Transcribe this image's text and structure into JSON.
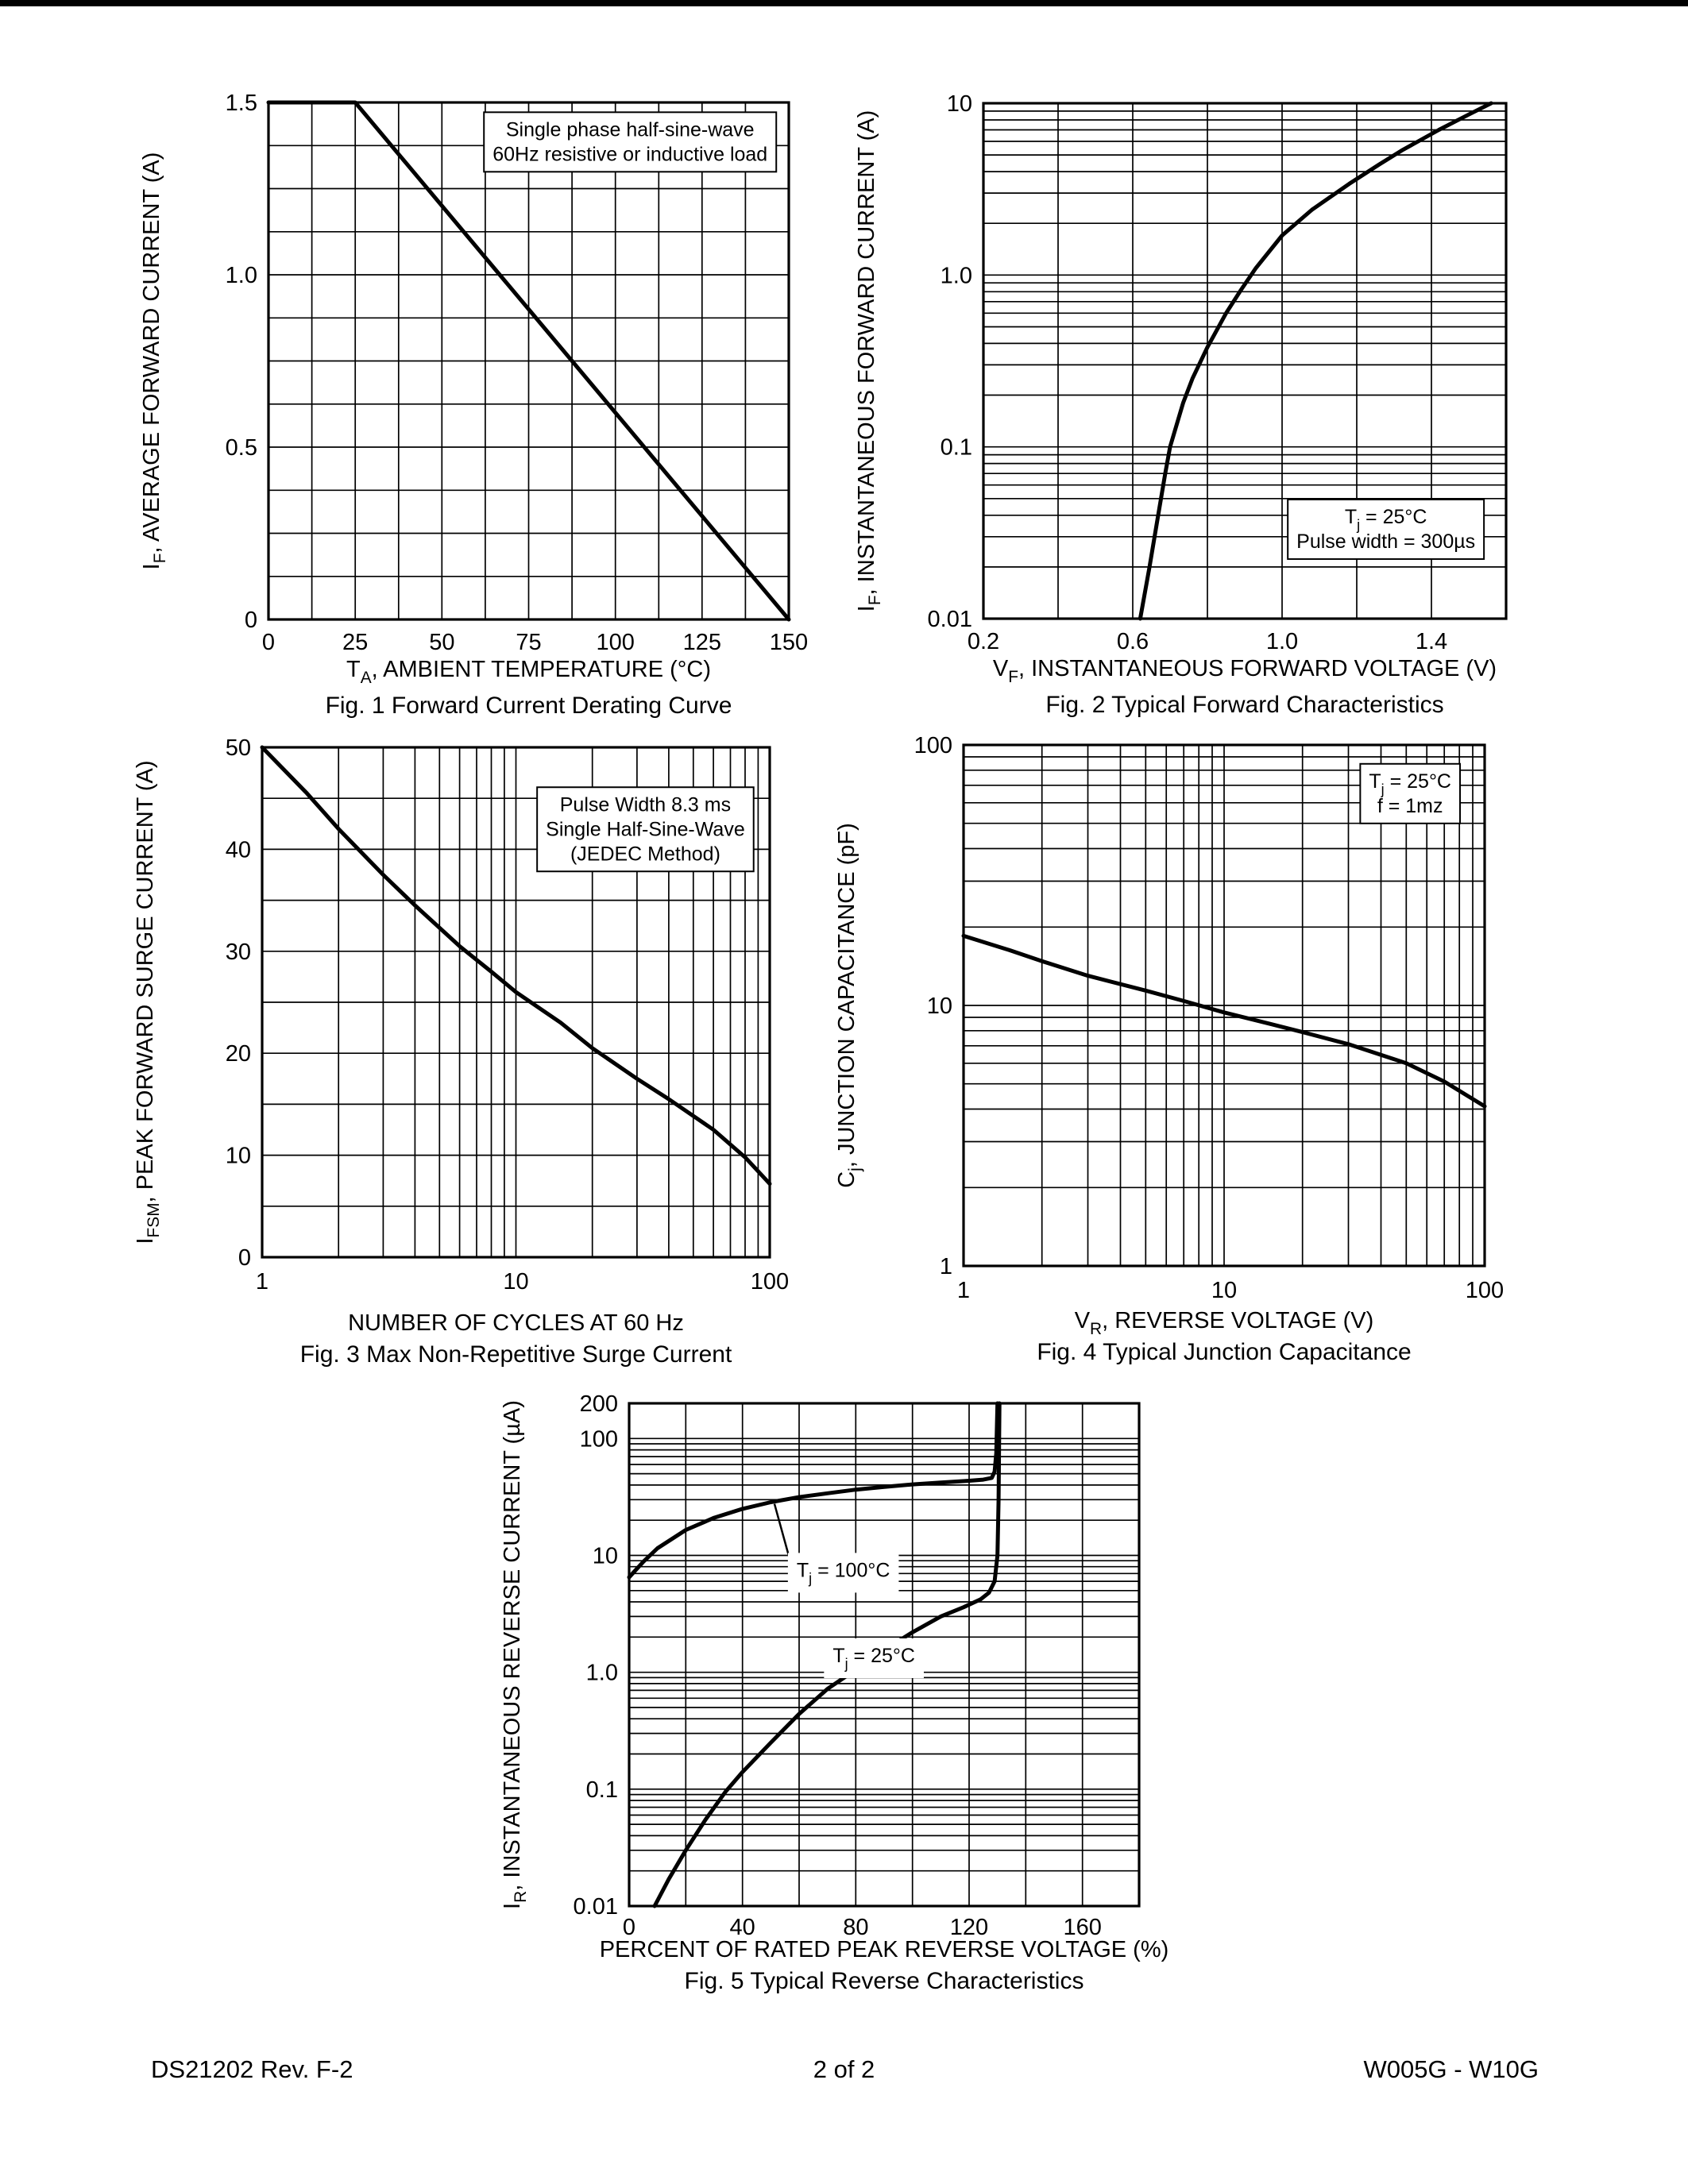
{
  "footer": {
    "left": "DS21202 Rev. F-2",
    "center": "2 of 2",
    "right": "W005G - W10G"
  },
  "chart_data": [
    {
      "id": "fig1",
      "type": "line",
      "title": "Fig. 1  Forward Current Derating Curve",
      "xlabel": "T_{A}, AMBIENT TEMPERATURE (°C)",
      "ylabel": "I_{F}, AVERAGE FORWARD CURRENT (A)",
      "xscale": "linear",
      "yscale": "linear",
      "xlim": [
        0,
        150
      ],
      "ylim": [
        0,
        1.5
      ],
      "xgrid_step": 12.5,
      "ygrid_step": 0.125,
      "grid": "on",
      "legend": "none",
      "xticks": [
        {
          "v": 0,
          "l": "0"
        },
        {
          "v": 25,
          "l": "25"
        },
        {
          "v": 50,
          "l": "50"
        },
        {
          "v": 75,
          "l": "75"
        },
        {
          "v": 100,
          "l": "100"
        },
        {
          "v": 125,
          "l": "125"
        },
        {
          "v": 150,
          "l": "150"
        }
      ],
      "yticks": [
        {
          "v": 0,
          "l": "0"
        },
        {
          "v": 0.5,
          "l": "0.5"
        },
        {
          "v": 1.0,
          "l": "1.0"
        },
        {
          "v": 1.5,
          "l": "1.5"
        }
      ],
      "series": [
        {
          "name": "average-forward-current-derating",
          "points": [
            [
              0,
              1.5
            ],
            [
              25,
              1.5
            ],
            [
              150,
              0
            ]
          ]
        }
      ],
      "annotations": [
        {
          "lines": [
            "Single phase half-sine-wave",
            "60Hz resistive or inductive load"
          ],
          "fx": 0.695,
          "fy": 0.065,
          "boxed": true
        }
      ]
    },
    {
      "id": "fig2",
      "type": "line",
      "title": "Fig. 2  Typical Forward Characteristics",
      "xlabel": "V_{F}, INSTANTANEOUS FORWARD VOLTAGE (V)",
      "ylabel": "I_{F}, INSTANTANEOUS FORWARD CURRENT (A)",
      "xscale": "linear",
      "yscale": "log",
      "xlim": [
        0.2,
        1.6
      ],
      "ylim": [
        0.01,
        10
      ],
      "xgrid_step": 0.2,
      "grid": "on",
      "legend": "none",
      "xticks": [
        {
          "v": 0.2,
          "l": "0.2"
        },
        {
          "v": 0.6,
          "l": "0.6"
        },
        {
          "v": 1.0,
          "l": "1.0"
        },
        {
          "v": 1.4,
          "l": "1.4"
        }
      ],
      "yticks": [
        {
          "v": 0.01,
          "l": "0.01"
        },
        {
          "v": 0.1,
          "l": "0.1"
        },
        {
          "v": 1.0,
          "l": "1.0"
        },
        {
          "v": 10,
          "l": "10"
        }
      ],
      "series": [
        {
          "name": "forward-characteristic",
          "points": [
            [
              0.62,
              0.01
            ],
            [
              0.645,
              0.02
            ],
            [
              0.668,
              0.04
            ],
            [
              0.687,
              0.07
            ],
            [
              0.7,
              0.1
            ],
            [
              0.735,
              0.18
            ],
            [
              0.76,
              0.25
            ],
            [
              0.8,
              0.38
            ],
            [
              0.85,
              0.6
            ],
            [
              0.89,
              0.82
            ],
            [
              0.93,
              1.1
            ],
            [
              1.0,
              1.7
            ],
            [
              1.08,
              2.4
            ],
            [
              1.18,
              3.4
            ],
            [
              1.26,
              4.4
            ],
            [
              1.32,
              5.3
            ],
            [
              1.42,
              7.0
            ],
            [
              1.5,
              8.6
            ],
            [
              1.56,
              10
            ]
          ]
        }
      ],
      "annotations": [
        {
          "lines": [
            "T_{j} = 25°C",
            "Pulse width = 300µs"
          ],
          "fx": 0.77,
          "fy": 0.815,
          "boxed": true
        }
      ]
    },
    {
      "id": "fig3",
      "type": "line",
      "title": "Fig. 3  Max Non-Repetitive Surge Current",
      "xlabel": "NUMBER OF CYCLES AT 60 Hz",
      "ylabel": "I_{FSM}, PEAK FORWARD SURGE CURRENT (A)",
      "xscale": "log",
      "yscale": "linear",
      "xlim": [
        1,
        100
      ],
      "ylim": [
        0,
        50
      ],
      "ygrid_step": 5,
      "grid": "on",
      "legend": "none",
      "xticks": [
        {
          "v": 1,
          "l": "1"
        },
        {
          "v": 10,
          "l": "10"
        },
        {
          "v": 100,
          "l": "100"
        }
      ],
      "yticks": [
        {
          "v": 0,
          "l": "0"
        },
        {
          "v": 10,
          "l": "10"
        },
        {
          "v": 20,
          "l": "20"
        },
        {
          "v": 30,
          "l": "30"
        },
        {
          "v": 40,
          "l": "40"
        },
        {
          "v": 50,
          "l": "50"
        }
      ],
      "series": [
        {
          "name": "peak-forward-surge-current",
          "points": [
            [
              1,
              50
            ],
            [
              1.5,
              45.5
            ],
            [
              2,
              42
            ],
            [
              3,
              37.5
            ],
            [
              4,
              34.5
            ],
            [
              6,
              30.5
            ],
            [
              8,
              28
            ],
            [
              10,
              26
            ],
            [
              15,
              23
            ],
            [
              20,
              20.5
            ],
            [
              30,
              17.5
            ],
            [
              40,
              15.5
            ],
            [
              60,
              12.5
            ],
            [
              80,
              9.8
            ],
            [
              100,
              7.2
            ]
          ]
        }
      ],
      "annotations": [
        {
          "lines": [
            "Pulse Width 8.3 ms",
            "Single Half-Sine-Wave",
            "(JEDEC Method)"
          ],
          "fx": 0.755,
          "fy": 0.125,
          "boxed": true
        }
      ]
    },
    {
      "id": "fig4",
      "type": "line",
      "title": "Fig. 4  Typical Junction Capacitance",
      "xlabel": "V_{R}, REVERSE VOLTAGE (V)",
      "ylabel": "C_{j}, JUNCTION CAPACITANCE (pF)",
      "xscale": "log",
      "yscale": "log",
      "xlim": [
        1,
        100
      ],
      "ylim": [
        1,
        100
      ],
      "grid": "on",
      "legend": "none",
      "xticks": [
        {
          "v": 1,
          "l": "1"
        },
        {
          "v": 10,
          "l": "10"
        },
        {
          "v": 100,
          "l": "100"
        }
      ],
      "yticks": [
        {
          "v": 1,
          "l": "1"
        },
        {
          "v": 10,
          "l": "10"
        },
        {
          "v": 100,
          "l": "100"
        }
      ],
      "series": [
        {
          "name": "junction-capacitance",
          "points": [
            [
              1,
              18.5
            ],
            [
              1.5,
              16.3
            ],
            [
              2,
              14.8
            ],
            [
              3,
              13.0
            ],
            [
              5,
              11.4
            ],
            [
              7,
              10.4
            ],
            [
              10,
              9.4
            ],
            [
              15,
              8.5
            ],
            [
              20,
              7.9
            ],
            [
              30,
              7.1
            ],
            [
              50,
              6.0
            ],
            [
              70,
              5.1
            ],
            [
              100,
              4.1
            ]
          ]
        }
      ],
      "annotations": [
        {
          "lines": [
            "T_{j} = 25°C",
            "f = 1mz"
          ],
          "fx": 0.857,
          "fy": 0.082,
          "boxed": true
        }
      ]
    },
    {
      "id": "fig5",
      "type": "line",
      "title": "Fig. 5  Typical Reverse Characteristics",
      "xlabel": "PERCENT OF RATED PEAK REVERSE VOLTAGE (%)",
      "ylabel": "I_{R}, INSTANTANEOUS REVERSE CURRENT (µA)",
      "xscale": "linear",
      "yscale": "log",
      "xlim": [
        0,
        180
      ],
      "ylim": [
        0.01,
        200
      ],
      "xgrid_step": 20,
      "grid": "on",
      "legend": "none",
      "xticks": [
        {
          "v": 0,
          "l": "0"
        },
        {
          "v": 40,
          "l": "40"
        },
        {
          "v": 80,
          "l": "80"
        },
        {
          "v": 120,
          "l": "120"
        },
        {
          "v": 160,
          "l": "160"
        }
      ],
      "yticks": [
        {
          "v": 0.01,
          "l": "0.01"
        },
        {
          "v": 0.1,
          "l": "0.1"
        },
        {
          "v": 1.0,
          "l": "1.0"
        },
        {
          "v": 10,
          "l": "10"
        },
        {
          "v": 100,
          "l": "100"
        },
        {
          "v": 200,
          "l": "200"
        }
      ],
      "series": [
        {
          "name": "reverse-current-Tj-100C",
          "points": [
            [
              0,
              6.5
            ],
            [
              5,
              8.8
            ],
            [
              10,
              11.5
            ],
            [
              20,
              16.5
            ],
            [
              30,
              21
            ],
            [
              40,
              25
            ],
            [
              50,
              28.5
            ],
            [
              60,
              31.5
            ],
            [
              70,
              34
            ],
            [
              80,
              36.5
            ],
            [
              90,
              38.5
            ],
            [
              100,
              40.5
            ],
            [
              110,
              42
            ],
            [
              120,
              43.5
            ],
            [
              125,
              44.5
            ],
            [
              128,
              46
            ],
            [
              129,
              52
            ],
            [
              129.6,
              75
            ],
            [
              130,
              200
            ]
          ]
        },
        {
          "name": "reverse-current-Tj-25C",
          "points": [
            [
              9,
              0.01
            ],
            [
              14,
              0.017
            ],
            [
              20,
              0.03
            ],
            [
              27,
              0.055
            ],
            [
              34,
              0.095
            ],
            [
              40,
              0.14
            ],
            [
              50,
              0.25
            ],
            [
              60,
              0.44
            ],
            [
              70,
              0.72
            ],
            [
              80,
              1.05
            ],
            [
              90,
              1.55
            ],
            [
              100,
              2.2
            ],
            [
              110,
              3.0
            ],
            [
              118,
              3.6
            ],
            [
              124,
              4.2
            ],
            [
              127,
              4.8
            ],
            [
              129,
              6
            ],
            [
              130,
              10
            ],
            [
              130.4,
              30
            ],
            [
              130.7,
              200
            ]
          ]
        }
      ],
      "annotations": [
        {
          "lines": [
            "T_{j} = 100°C"
          ],
          "fx": 0.42,
          "fy": 0.345,
          "boxed": false,
          "leader": [
            0.285,
            0.2
          ]
        },
        {
          "lines": [
            "T_{j} = 25°C"
          ],
          "fx": 0.48,
          "fy": 0.515,
          "boxed": false
        }
      ]
    }
  ]
}
